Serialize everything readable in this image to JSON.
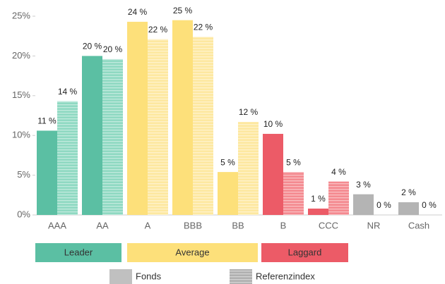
{
  "chart_data": {
    "type": "bar",
    "categories": [
      "AAA",
      "AA",
      "A",
      "BBB",
      "BB",
      "B",
      "CCC",
      "NR",
      "Cash"
    ],
    "series": [
      {
        "name": "Fonds",
        "color": "#c0c0c0",
        "colors": [
          "#5bbfa3",
          "#5bbfa3",
          "#fde07a",
          "#fde07a",
          "#fde07a",
          "#ec5b67",
          "#ec5b67",
          "#b4b4b4",
          "#b4b4b4"
        ],
        "values": [
          10.6,
          20,
          24.3,
          24.5,
          5.4,
          10.2,
          0.8,
          2.6,
          1.6
        ],
        "value_labels": [
          "11 %",
          "20 %",
          "24 %",
          "25 %",
          "5 %",
          "10 %",
          "1 %",
          "3 %",
          "2 %"
        ]
      },
      {
        "name": "Referenzindex",
        "color": "#b0b0b0",
        "colors": [
          "#8fd9c2",
          "#8fd9c2",
          "#fde8a0",
          "#fde8a0",
          "#fde8a0",
          "#f48a90",
          "#f48a90",
          "#cccccc",
          "#cccccc"
        ],
        "values": [
          14.3,
          19.6,
          22.1,
          22.4,
          11.7,
          5.4,
          4.2,
          0,
          0
        ],
        "value_labels": [
          "14 %",
          "20 %",
          "22 %",
          "22 %",
          "12 %",
          "5 %",
          "4 %",
          "0 %",
          "0 %"
        ]
      }
    ],
    "groups": [
      {
        "name": "Leader",
        "color": "#5bbfa3"
      },
      {
        "name": "Average",
        "color": "#fde07a"
      },
      {
        "name": "Laggard",
        "color": "#ec5b67"
      }
    ],
    "ylim": [
      0,
      25
    ],
    "yticks": [
      {
        "value": 0,
        "label": "0%"
      },
      {
        "value": 5,
        "label": "5%"
      },
      {
        "value": 10,
        "label": "10%"
      },
      {
        "value": 15,
        "label": "15%"
      },
      {
        "value": 20,
        "label": "20%"
      },
      {
        "value": 25,
        "label": "25%"
      }
    ]
  }
}
